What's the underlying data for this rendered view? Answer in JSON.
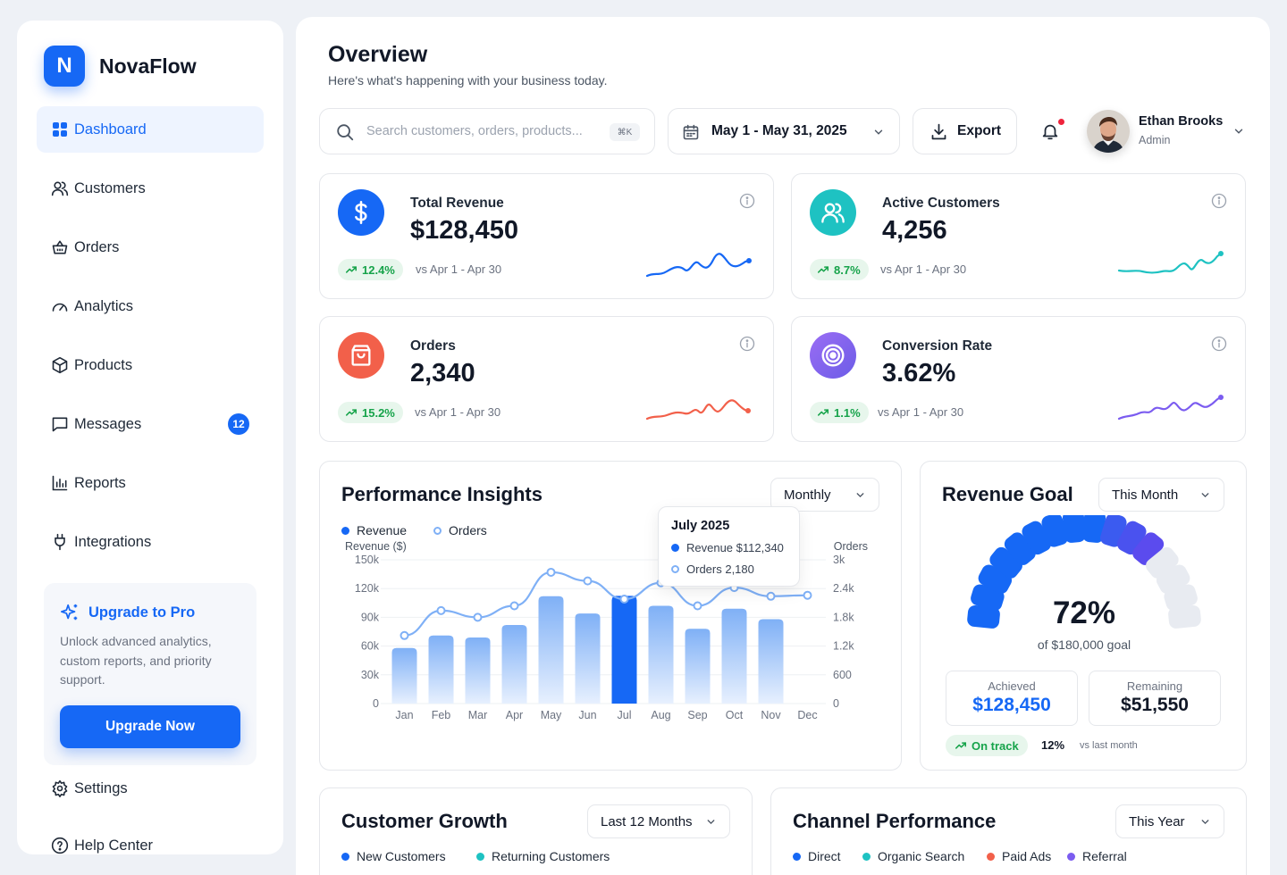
{
  "app": {
    "logo_letter": "N",
    "name": "NovaFlow"
  },
  "sidebar": {
    "items": [
      {
        "label": "Dashboard",
        "icon": "grid-icon",
        "active": true
      },
      {
        "label": "Customers",
        "icon": "users-icon"
      },
      {
        "label": "Orders",
        "icon": "basket-icon"
      },
      {
        "label": "Analytics",
        "icon": "gauge-icon"
      },
      {
        "label": "Products",
        "icon": "box-icon"
      },
      {
        "label": "Messages",
        "icon": "message-icon",
        "badge": "12"
      },
      {
        "label": "Reports",
        "icon": "bar-chart-icon"
      },
      {
        "label": "Integrations",
        "icon": "plug-icon"
      }
    ],
    "promo": {
      "title": "Upgrade to Pro",
      "text": "Unlock advanced analytics, custom reports, and priority support.",
      "button": "Upgrade Now"
    },
    "footer": {
      "settings": "Settings",
      "help": "Help Center"
    }
  },
  "header": {
    "title": "Overview",
    "subtitle": "Here's what's happening with your business today.",
    "search": {
      "placeholder": "Search customers, orders, products...",
      "shortcut": "⌘K"
    },
    "date_range": "May 1 - May 31, 2025",
    "export": "Export",
    "user": {
      "name": "Ethan Brooks",
      "role": "Admin"
    }
  },
  "kpis": [
    {
      "label": "Total Revenue",
      "value": "$128,450",
      "change": "12.4%",
      "compare": "vs Apr 1 - Apr 30",
      "color": "#1668f5"
    },
    {
      "label": "Active Customers",
      "value": "4,256",
      "change": "8.7%",
      "compare": "vs Apr 1 - Apr 30",
      "color": "#1ec2c2"
    },
    {
      "label": "Orders",
      "value": "2,340",
      "change": "15.2%",
      "compare": "vs Apr 1 - Apr 30",
      "color": "#f2604a"
    },
    {
      "label": "Conversion Rate",
      "value": "3.62%",
      "change": "1.1%",
      "compare": "vs Apr 1 - Apr 30",
      "color": "#7b5cf0"
    }
  ],
  "performance": {
    "title": "Performance Insights",
    "period": "Monthly",
    "legend": {
      "revenue": "Revenue",
      "orders": "Orders"
    },
    "y_left_label": "Revenue ($)",
    "y_right_label": "Orders",
    "tooltip": {
      "title": "July 2025",
      "revenue": "Revenue $112,340",
      "orders": "Orders 2,180"
    }
  },
  "chart_data": {
    "type": "bar",
    "categories": [
      "Jan",
      "Feb",
      "Mar",
      "Apr",
      "May",
      "Jun",
      "Jul",
      "Aug",
      "Sep",
      "Oct",
      "Nov",
      "Dec"
    ],
    "series": [
      {
        "name": "Revenue",
        "type": "bar",
        "axis": "left",
        "values": [
          58000,
          71000,
          69000,
          82000,
          112000,
          94000,
          112340,
          102000,
          78000,
          99000,
          88000,
          null
        ]
      },
      {
        "name": "Orders",
        "type": "line",
        "axis": "right",
        "values": [
          1420,
          1940,
          1800,
          2040,
          2740,
          2560,
          2180,
          2520,
          2040,
          2420,
          2240,
          2260
        ]
      }
    ],
    "y_left": {
      "ticks": [
        "150k",
        "120k",
        "90k",
        "60k",
        "30k",
        "0"
      ],
      "range": [
        0,
        150000
      ]
    },
    "y_right": {
      "ticks": [
        "3k",
        "2.4k",
        "1.8k",
        "1.2k",
        "600",
        "0"
      ],
      "range": [
        0,
        3000
      ]
    },
    "highlight": "Jul",
    "grid": true,
    "legend_position": "top-left"
  },
  "revenue_goal": {
    "title": "Revenue Goal",
    "period": "This Month",
    "percent": "72%",
    "goal": "of $180,000 goal",
    "progress": 0.72,
    "achieved_label": "Achieved",
    "achieved": "$128,450",
    "remaining_label": "Remaining",
    "remaining": "$51,550",
    "status": "On track",
    "change": "12%",
    "change_label": "vs last month"
  },
  "customer_growth": {
    "title": "Customer Growth",
    "period": "Last 12 Months",
    "legend": [
      "New Customers",
      "Returning Customers"
    ]
  },
  "channel": {
    "title": "Channel Performance",
    "period": "This Year",
    "legend": [
      "Direct",
      "Organic Search",
      "Paid Ads",
      "Referral"
    ]
  },
  "colors": {
    "accent": "#1668f5",
    "success": "#16a34a",
    "teal": "#1ec2c2",
    "coral": "#f2604a",
    "purple": "#7b5cf0"
  }
}
